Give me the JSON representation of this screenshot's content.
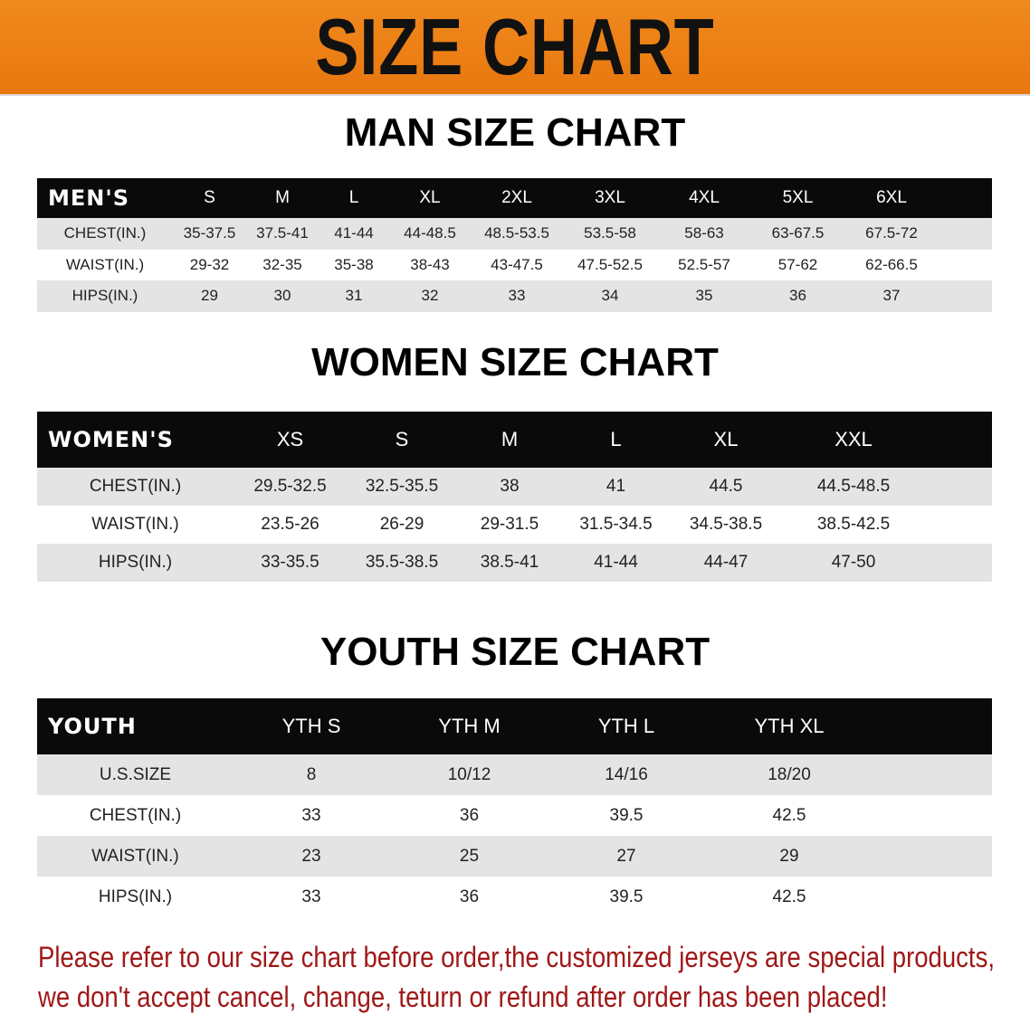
{
  "banner_title": "SIZE CHART",
  "colors": {
    "banner": "#ef8419",
    "header_row": "#0a0a0a",
    "stripe": "#e4e4e4",
    "notice": "#a01818"
  },
  "men": {
    "title": "MAN SIZE CHART",
    "header": [
      "MEN'S",
      "S",
      "M",
      "L",
      "XL",
      "2XL",
      "3XL",
      "4XL",
      "5XL",
      "6XL",
      ""
    ],
    "rows": [
      [
        "CHEST(IN.)",
        "35-37.5",
        "37.5-41",
        "41-44",
        "44-48.5",
        "48.5-53.5",
        "53.5-58",
        "58-63",
        "63-67.5",
        "67.5-72",
        ""
      ],
      [
        "WAIST(IN.)",
        "29-32",
        "32-35",
        "35-38",
        "38-43",
        "43-47.5",
        "47.5-52.5",
        "52.5-57",
        "57-62",
        "62-66.5",
        ""
      ],
      [
        "HIPS(IN.)",
        "29",
        "30",
        "31",
        "32",
        "33",
        "34",
        "35",
        "36",
        "37",
        ""
      ]
    ]
  },
  "women": {
    "title": "WOMEN SIZE CHART",
    "header": [
      "WOMEN'S",
      "XS",
      "S",
      "M",
      "L",
      "XL",
      "XXL",
      ""
    ],
    "rows": [
      [
        "CHEST(IN.)",
        "29.5-32.5",
        "32.5-35.5",
        "38",
        "41",
        "44.5",
        "44.5-48.5",
        ""
      ],
      [
        "WAIST(IN.)",
        "23.5-26",
        "26-29",
        "29-31.5",
        "31.5-34.5",
        "34.5-38.5",
        "38.5-42.5",
        ""
      ],
      [
        "HIPS(IN.)",
        "33-35.5",
        "35.5-38.5",
        "38.5-41",
        "41-44",
        "44-47",
        "47-50",
        ""
      ]
    ]
  },
  "youth": {
    "title": "YOUTH SIZE CHART",
    "header": [
      "YOUTH",
      "YTH S",
      "YTH M",
      "YTH L",
      "YTH XL",
      ""
    ],
    "rows": [
      [
        "U.S.SIZE",
        "8",
        "10/12",
        "14/16",
        "18/20",
        ""
      ],
      [
        "CHEST(IN.)",
        "33",
        "36",
        "39.5",
        "42.5",
        ""
      ],
      [
        "WAIST(IN.)",
        "23",
        "25",
        "27",
        "29",
        ""
      ],
      [
        "HIPS(IN.)",
        "33",
        "36",
        "39.5",
        "42.5",
        ""
      ]
    ]
  },
  "notice": {
    "line1": "Please refer to our size chart before order,the customized jerseys are special products,",
    "line2": "we don't accept cancel, change, teturn or refund after order has been placed!"
  }
}
